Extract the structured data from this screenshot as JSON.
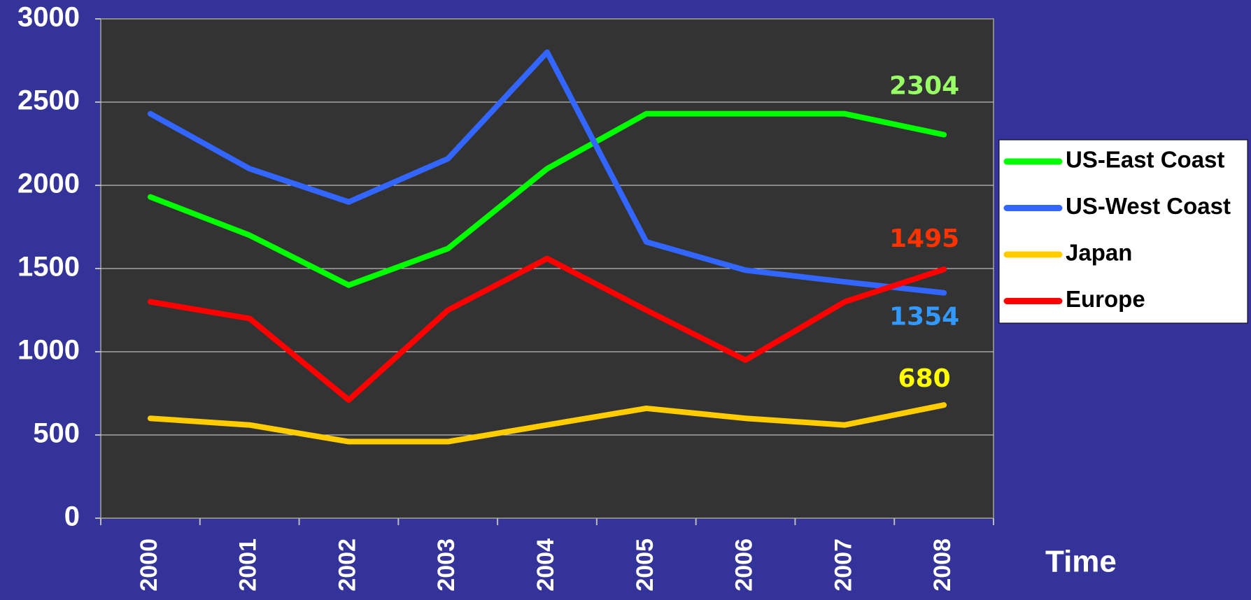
{
  "chart_data": {
    "type": "line",
    "x_label": "Time",
    "categories": [
      "2000",
      "2001",
      "2002",
      "2003",
      "2004",
      "2005",
      "2006",
      "2007",
      "2008"
    ],
    "series": [
      {
        "name": "US-East Coast",
        "color": "#00ff00",
        "label_color": "#99ff66",
        "values": [
          1930,
          1700,
          1400,
          1620,
          2100,
          2430,
          2430,
          2430,
          2304
        ]
      },
      {
        "name": "US-West Coast",
        "color": "#3366ff",
        "label_color": "#3399ff",
        "values": [
          2430,
          2100,
          1900,
          2160,
          2800,
          1660,
          1490,
          1420,
          1354
        ]
      },
      {
        "name": "Japan",
        "color": "#ffcc00",
        "label_color": "#ffff00",
        "values": [
          600,
          560,
          460,
          460,
          560,
          660,
          600,
          560,
          680
        ]
      },
      {
        "name": "Europe",
        "color": "#ff0000",
        "label_color": "#ff3300",
        "values": [
          1300,
          1200,
          710,
          1250,
          1560,
          1250,
          950,
          1300,
          1495
        ]
      }
    ],
    "ylim": [
      0,
      3000
    ],
    "yticks": [
      0,
      500,
      1000,
      1500,
      2000,
      2500,
      3000
    ],
    "grid": true,
    "legend": "right"
  }
}
